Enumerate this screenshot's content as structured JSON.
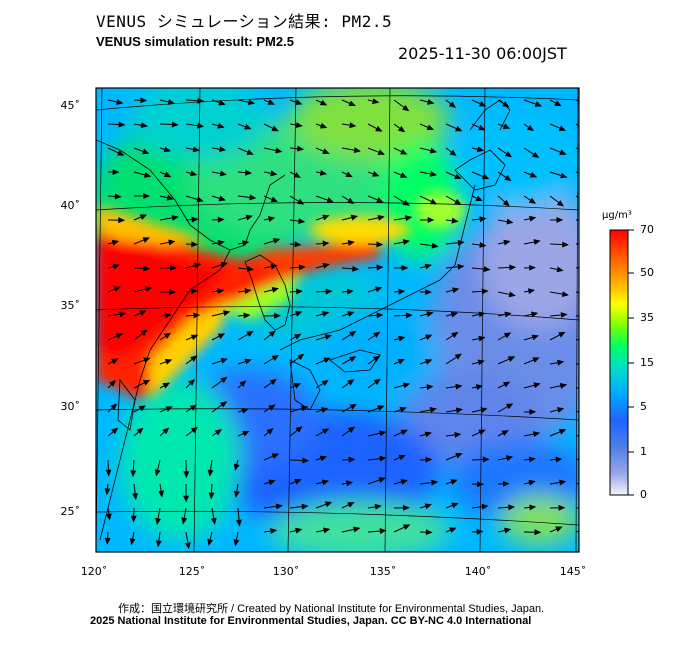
{
  "title_jp": "VENUS シミュレーション結果: PM2.5",
  "title_en": "VENUS simulation result: PM2.5",
  "datetime": "2025-11-30 06:00JST",
  "lat_labels": [
    "45˚",
    "40˚",
    "35˚",
    "30˚",
    "25˚"
  ],
  "lon_labels": [
    "120˚",
    "125˚",
    "130˚",
    "135˚",
    "140˚",
    "145˚"
  ],
  "colorbar": {
    "unit": "μg/m³",
    "ticks": [
      "70",
      "50",
      "35",
      "15",
      "5",
      "1",
      "0"
    ],
    "colors": [
      "#ff0000",
      "#ff5a00",
      "#ffb000",
      "#ffff00",
      "#7fff00",
      "#00ff66",
      "#00e0c8",
      "#00a8ff",
      "#1e64ff",
      "#4f7fe6",
      "#9aa6e6",
      "#e6e8ff"
    ]
  },
  "credit_line1": "作成：国立環境研究所 / Created by National Institute for Environmental Studies, Japan.",
  "credit_line2": "2025 National Institute for Environmental Studies, Japan. CC BY-NC 4.0 International"
}
